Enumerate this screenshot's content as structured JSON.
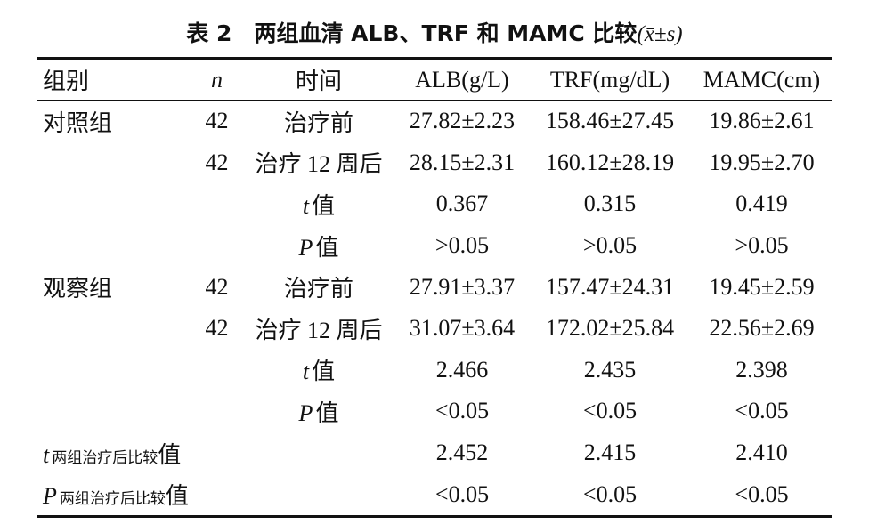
{
  "title": "表 2　两组血清 ALB、TRF 和 MAMC 比较",
  "title_stat": "(x̄±s)",
  "table": {
    "header": [
      "组别",
      "n",
      "时间",
      "ALB(g/L)",
      "TRF(mg/dL)",
      "MAMC(cm)"
    ],
    "rows": [
      [
        "对照组",
        "42",
        "治疗前",
        "27.82±2.23",
        "158.46±27.45",
        "19.86±2.61"
      ],
      [
        null,
        "42",
        "治疗 12 周后",
        "28.15±2.31",
        "160.12±28.19",
        "19.95±2.70"
      ],
      [
        null,
        null,
        {
          "symbol": "t",
          "text": "值"
        },
        "0.367",
        "0.315",
        "0.419"
      ],
      [
        null,
        null,
        {
          "symbol": "P",
          "text": "值"
        },
        ">0.05",
        ">0.05",
        ">0.05"
      ],
      [
        "观察组",
        "42",
        "治疗前",
        "27.91±3.37",
        "157.47±24.31",
        "19.45±2.59"
      ],
      [
        null,
        "42",
        "治疗 12 周后",
        "31.07±3.64",
        "172.02±25.84",
        "22.56±2.69"
      ],
      [
        null,
        null,
        {
          "symbol": "t",
          "text": "值"
        },
        "2.466",
        "2.435",
        "2.398"
      ],
      [
        null,
        null,
        {
          "symbol": "P",
          "text": "值"
        },
        "<0.05",
        "<0.05",
        "<0.05"
      ],
      [
        {
          "symbol": "t",
          "subscript": "两组治疗后比较",
          "text": "值"
        },
        null,
        null,
        "2.452",
        "2.415",
        "2.410"
      ],
      [
        {
          "symbol": "P",
          "subscript": "两组治疗后比较",
          "text": "值"
        },
        null,
        null,
        "<0.05",
        "<0.05",
        "<0.05"
      ]
    ]
  }
}
